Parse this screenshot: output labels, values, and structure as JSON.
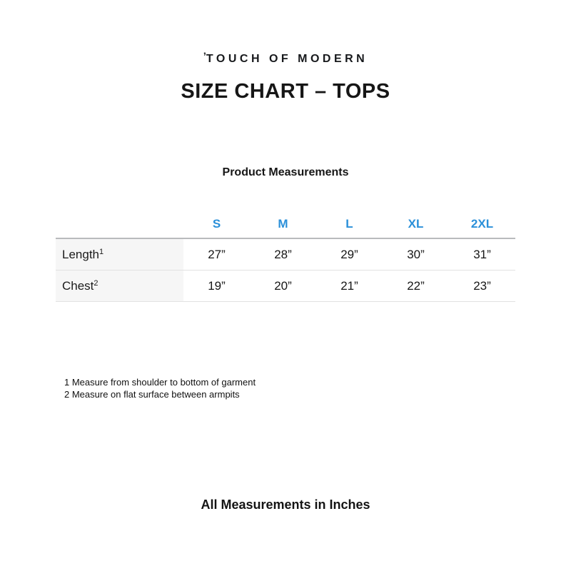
{
  "page": {
    "logo_mark": "ʼ",
    "logo_text": "TOUCH OF MODERN",
    "title": "SIZE CHART – TOPS",
    "subtitle": "Product Measurements",
    "footer": "All Measurements in Inches"
  },
  "table": {
    "sizes": [
      "S",
      "M",
      "L",
      "XL",
      "2XL"
    ],
    "rows": [
      {
        "label": "Length",
        "sup": "1",
        "values": [
          "27”",
          "28”",
          "29”",
          "30”",
          "31”"
        ]
      },
      {
        "label": "Chest",
        "sup": "2",
        "values": [
          "19”",
          "20”",
          "21”",
          "22”",
          "23”"
        ]
      }
    ]
  },
  "footnotes": [
    "1 Measure from shoulder to bottom of garment",
    "2 Measure on flat surface between armpits"
  ],
  "colors": {
    "size_header_blue": "#2b90d9",
    "label_column_bg": "#f6f6f6",
    "table_top_border": "#b9bbbd",
    "table_inner_border": "#e2e2e2"
  }
}
